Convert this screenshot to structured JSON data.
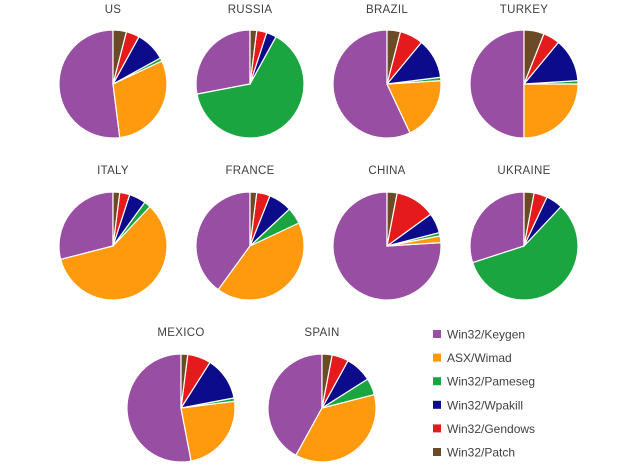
{
  "legend": [
    {
      "name": "Win32/Keygen",
      "color": "#984ea3"
    },
    {
      "name": "ASX/Wimad",
      "color": "#ff990d"
    },
    {
      "name": "Win32/Pameseg",
      "color": "#1ba541"
    },
    {
      "name": "Win32/Wpakill",
      "color": "#0b0b8c"
    },
    {
      "name": "Win32/Gendows",
      "color": "#e41a1c"
    },
    {
      "name": "Win32/Patch",
      "color": "#6a4b26"
    }
  ],
  "chart_data": [
    {
      "type": "pie",
      "title": "US",
      "labels": [
        "Win32/Keygen",
        "ASX/Wimad",
        "Win32/Pameseg",
        "Win32/Wpakill",
        "Win32/Gendows",
        "Win32/Patch"
      ],
      "values": [
        52,
        30,
        1,
        9,
        4,
        4
      ]
    },
    {
      "type": "pie",
      "title": "RUSSIA",
      "labels": [
        "Win32/Keygen",
        "ASX/Wimad",
        "Win32/Pameseg",
        "Win32/Wpakill",
        "Win32/Gendows",
        "Win32/Patch"
      ],
      "values": [
        28,
        0,
        64,
        3,
        3,
        2
      ]
    },
    {
      "type": "pie",
      "title": "BRAZIL",
      "labels": [
        "Win32/Keygen",
        "ASX/Wimad",
        "Win32/Pameseg",
        "Win32/Wpakill",
        "Win32/Gendows",
        "Win32/Patch"
      ],
      "values": [
        57,
        19,
        1,
        12,
        7,
        4
      ]
    },
    {
      "type": "pie",
      "title": "TURKEY",
      "labels": [
        "Win32/Keygen",
        "ASX/Wimad",
        "Win32/Pameseg",
        "Win32/Wpakill",
        "Win32/Gendows",
        "Win32/Patch"
      ],
      "values": [
        50,
        25,
        1,
        13,
        5,
        6
      ]
    },
    {
      "type": "pie",
      "title": "ITALY",
      "labels": [
        "Win32/Keygen",
        "ASX/Wimad",
        "Win32/Pameseg",
        "Win32/Wpakill",
        "Win32/Gendows",
        "Win32/Patch"
      ],
      "values": [
        29,
        59,
        2,
        5,
        3,
        2
      ]
    },
    {
      "type": "pie",
      "title": "FRANCE",
      "labels": [
        "Win32/Keygen",
        "ASX/Wimad",
        "Win32/Pameseg",
        "Win32/Wpakill",
        "Win32/Gendows",
        "Win32/Patch"
      ],
      "values": [
        40,
        42,
        5,
        7,
        4,
        2
      ]
    },
    {
      "type": "pie",
      "title": "CHINA",
      "labels": [
        "Win32/Keygen",
        "ASX/Wimad",
        "Win32/Pameseg",
        "Win32/Wpakill",
        "Win32/Gendows",
        "Win32/Patch"
      ],
      "values": [
        76,
        2,
        1,
        6,
        12,
        3
      ]
    },
    {
      "type": "pie",
      "title": "UKRAINE",
      "labels": [
        "Win32/Keygen",
        "ASX/Wimad",
        "Win32/Pameseg",
        "Win32/Wpakill",
        "Win32/Gendows",
        "Win32/Patch"
      ],
      "values": [
        30,
        0,
        58,
        5,
        4,
        3
      ]
    },
    {
      "type": "pie",
      "title": "MEXICO",
      "labels": [
        "Win32/Keygen",
        "ASX/Wimad",
        "Win32/Pameseg",
        "Win32/Wpakill",
        "Win32/Gendows",
        "Win32/Patch"
      ],
      "values": [
        53,
        24,
        1,
        13,
        7,
        2
      ]
    },
    {
      "type": "pie",
      "title": "SPAIN",
      "labels": [
        "Win32/Keygen",
        "ASX/Wimad",
        "Win32/Pameseg",
        "Win32/Wpakill",
        "Win32/Gendows",
        "Win32/Patch"
      ],
      "values": [
        42,
        37,
        5,
        8,
        5,
        3
      ]
    }
  ]
}
